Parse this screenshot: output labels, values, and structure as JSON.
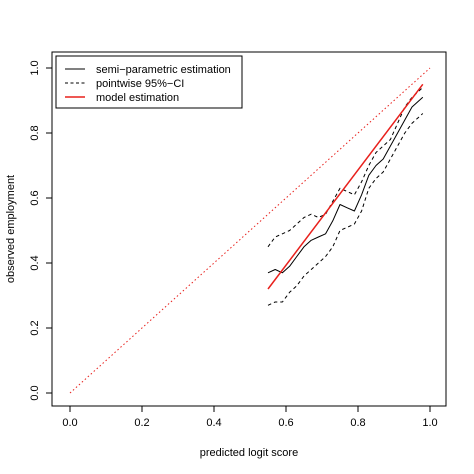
{
  "chart_data": {
    "type": "line",
    "title": "",
    "xlabel": "predicted logit score",
    "ylabel": "observed employment",
    "xlim": [
      0.0,
      1.0
    ],
    "ylim": [
      0.0,
      1.0
    ],
    "xticks": [
      "0.0",
      "0.2",
      "0.4",
      "0.6",
      "0.8",
      "1.0"
    ],
    "yticks": [
      "0.0",
      "0.2",
      "0.4",
      "0.6",
      "0.8",
      "1.0"
    ],
    "grid": false,
    "legend_position": "top-left",
    "legend": [
      {
        "label": "semi−parametric estimation",
        "color": "#000000",
        "dash": "solid"
      },
      {
        "label": "pointwise 95%−CI",
        "color": "#000000",
        "dash": "dashed"
      },
      {
        "label": "model estimation",
        "color": "#e8201c",
        "dash": "solid"
      }
    ],
    "diagonal": {
      "x": [
        0.0,
        1.0
      ],
      "y": [
        0.0,
        1.0
      ],
      "color": "#e8201c",
      "dash": "dotted"
    },
    "series": [
      {
        "name": "semi−parametric estimation",
        "color": "#000000",
        "x": [
          0.55,
          0.57,
          0.59,
          0.61,
          0.63,
          0.65,
          0.67,
          0.69,
          0.71,
          0.73,
          0.75,
          0.77,
          0.79,
          0.81,
          0.83,
          0.85,
          0.87,
          0.89,
          0.91,
          0.93,
          0.95,
          0.98
        ],
        "y": [
          0.37,
          0.38,
          0.37,
          0.39,
          0.42,
          0.45,
          0.47,
          0.48,
          0.49,
          0.53,
          0.58,
          0.57,
          0.56,
          0.61,
          0.67,
          0.7,
          0.72,
          0.76,
          0.8,
          0.84,
          0.88,
          0.91
        ]
      },
      {
        "name": "pointwise 95%−CI upper",
        "color": "#000000",
        "x": [
          0.55,
          0.57,
          0.59,
          0.61,
          0.63,
          0.65,
          0.67,
          0.69,
          0.71,
          0.73,
          0.75,
          0.77,
          0.79,
          0.81,
          0.83,
          0.85,
          0.87,
          0.89,
          0.91,
          0.93,
          0.95,
          0.98
        ],
        "y": [
          0.45,
          0.48,
          0.49,
          0.5,
          0.52,
          0.54,
          0.55,
          0.54,
          0.55,
          0.59,
          0.63,
          0.62,
          0.61,
          0.65,
          0.7,
          0.74,
          0.76,
          0.78,
          0.83,
          0.88,
          0.91,
          0.94
        ]
      },
      {
        "name": "pointwise 95%−CI lower",
        "color": "#000000",
        "x": [
          0.55,
          0.57,
          0.59,
          0.61,
          0.63,
          0.65,
          0.67,
          0.69,
          0.71,
          0.73,
          0.75,
          0.77,
          0.79,
          0.81,
          0.83,
          0.85,
          0.87,
          0.89,
          0.91,
          0.93,
          0.95,
          0.98
        ],
        "y": [
          0.27,
          0.28,
          0.28,
          0.31,
          0.33,
          0.36,
          0.38,
          0.4,
          0.42,
          0.45,
          0.5,
          0.51,
          0.52,
          0.56,
          0.63,
          0.66,
          0.68,
          0.72,
          0.76,
          0.8,
          0.83,
          0.86
        ]
      },
      {
        "name": "model estimation",
        "color": "#e8201c",
        "x": [
          0.55,
          0.98
        ],
        "y": [
          0.32,
          0.95
        ]
      }
    ]
  }
}
